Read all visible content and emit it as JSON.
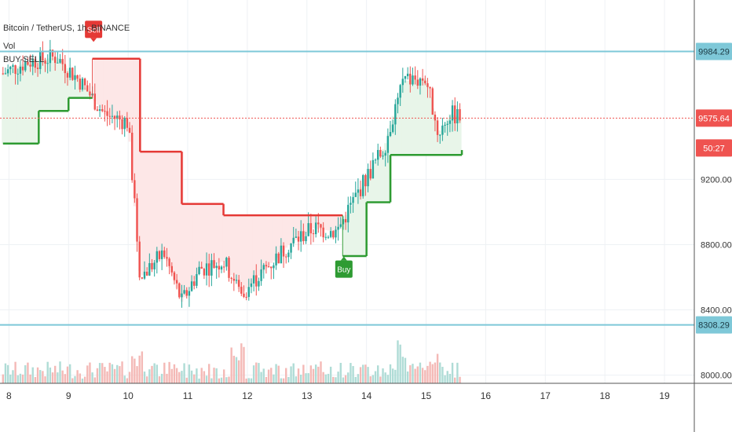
{
  "header": {
    "symbol_line": "Bitcoin / TetherUS, 1h, BINANCE",
    "indicator_1": "Vol",
    "indicator_2": "BUY-SELL"
  },
  "price_scale": {
    "ticks": [
      "9200.00",
      "8800.00",
      "8400.00",
      "8000.00"
    ],
    "last_price": "9575.64",
    "countdown": "50:27",
    "level_high": "9984.29",
    "level_low": "8308.29"
  },
  "markers": {
    "sell_label": "Sell",
    "buy_label": "Buy"
  },
  "colors": {
    "up": "#26a69a",
    "down": "#ef5350",
    "buy_line": "#2e9b32",
    "sell_line": "#e53935",
    "level_line": "#7ec8d8",
    "level_badge": "#7ec8d8",
    "last_price": "#ef5350"
  },
  "chart_data": {
    "type": "candlestick",
    "title": "Bitcoin / TetherUS, 1h, BINANCE",
    "x_tick_labels": [
      "8",
      "9",
      "10",
      "11",
      "12",
      "13",
      "14",
      "15",
      "16",
      "17",
      "18",
      "19"
    ],
    "y_range": [
      7950,
      10300
    ],
    "y_ticks": [
      9200,
      8800,
      8400,
      8000
    ],
    "horizontal_levels": [
      9984.29,
      8308.29
    ],
    "last_price": 9575.64,
    "price_path_day_close": [
      [
        7.9,
        9850
      ],
      [
        8.3,
        9920
      ],
      [
        8.8,
        9950
      ],
      [
        9.2,
        9800
      ],
      [
        9.6,
        9600
      ],
      [
        10.0,
        9550
      ],
      [
        10.2,
        8600
      ],
      [
        10.6,
        8750
      ],
      [
        10.9,
        8450
      ],
      [
        11.2,
        8650
      ],
      [
        11.6,
        8700
      ],
      [
        11.9,
        8500
      ],
      [
        12.3,
        8650
      ],
      [
        12.7,
        8800
      ],
      [
        13.1,
        8900
      ],
      [
        13.5,
        8880
      ],
      [
        13.9,
        9150
      ],
      [
        14.3,
        9400
      ],
      [
        14.6,
        9800
      ],
      [
        15.0,
        9820
      ],
      [
        15.2,
        9480
      ],
      [
        15.4,
        9600
      ],
      [
        15.6,
        9575.64
      ]
    ],
    "buy_sell_stop": [
      [
        7.9,
        9420,
        "buy"
      ],
      [
        8.5,
        9620,
        "buy"
      ],
      [
        9.0,
        9700,
        "buy"
      ],
      [
        9.4,
        9940,
        "sell"
      ],
      [
        10.2,
        9940,
        "sell"
      ],
      [
        10.2,
        9370,
        "sell"
      ],
      [
        10.9,
        9050,
        "sell"
      ],
      [
        11.6,
        8980,
        "sell"
      ],
      [
        13.6,
        8980,
        "sell"
      ],
      [
        13.6,
        8730,
        "buy"
      ],
      [
        14.0,
        9060,
        "buy"
      ],
      [
        14.4,
        9350,
        "buy"
      ],
      [
        15.6,
        9380,
        "buy"
      ]
    ],
    "signals": [
      {
        "label": "Sell",
        "x": 9.42,
        "y": 10120
      },
      {
        "label": "Buy",
        "x": 13.62,
        "y": 8650
      }
    ],
    "volume_relative": "small bars along bottom, larger near 10, 11.8, 14.5 and 15.2"
  }
}
